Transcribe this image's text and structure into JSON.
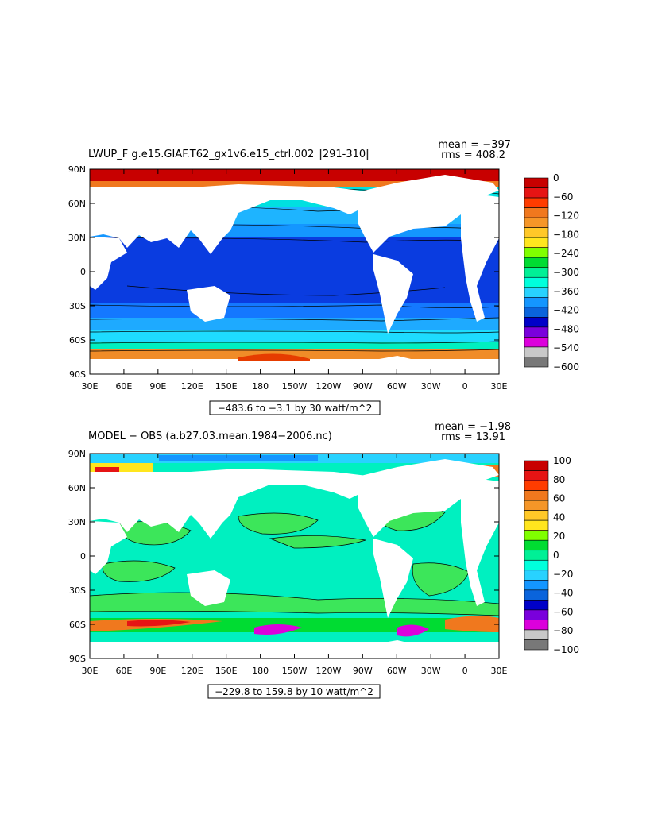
{
  "panels": [
    {
      "title": "LWUP_F g.e15.GIAF.T62_gx1v6.e15_ctrl.002 ‖291-310‖",
      "mean": "mean = −397",
      "rms": "rms = 408.2",
      "range_label": "−483.6 to −3.1 by 30 watt/m^2",
      "lat_labels": [
        "90N",
        "60N",
        "30N",
        "0",
        "30S",
        "60S",
        "90S"
      ],
      "lon_labels": [
        "30E",
        "60E",
        "90E",
        "120E",
        "150E",
        "180",
        "150W",
        "120W",
        "90W",
        "60W",
        "30W",
        "0",
        "30E"
      ],
      "colorbar": {
        "labels": [
          "0",
          "−60",
          "−120",
          "−180",
          "−240",
          "−300",
          "−360",
          "−420",
          "−480",
          "−540",
          "−600"
        ],
        "colors": [
          "#c80000",
          "#e61414",
          "#ff3c00",
          "#f0781e",
          "#f59628",
          "#ffc828",
          "#ffe61e",
          "#80ff00",
          "#00dc32",
          "#00f096",
          "#00ffdc",
          "#28d2ff",
          "#1496ff",
          "#0a64dc",
          "#0000c8",
          "#7a00dc",
          "#dc00dc",
          "#c8c8c8",
          "#787878"
        ]
      }
    },
    {
      "title": "MODEL − OBS (a.b27.03.mean.1984−2006.nc)",
      "mean": "mean = −1.98",
      "rms": "rms = 13.91",
      "range_label": "−229.8 to 159.8 by 10 watt/m^2",
      "lat_labels": [
        "90N",
        "60N",
        "30N",
        "0",
        "30S",
        "60S",
        "90S"
      ],
      "lon_labels": [
        "30E",
        "60E",
        "90E",
        "120E",
        "150E",
        "180",
        "150W",
        "120W",
        "90W",
        "60W",
        "30W",
        "0",
        "30E"
      ],
      "colorbar": {
        "labels": [
          "100",
          "80",
          "60",
          "40",
          "20",
          "0",
          "−20",
          "−40",
          "−60",
          "−80",
          "−100"
        ],
        "colors": [
          "#c80000",
          "#e61414",
          "#ff3c00",
          "#f0781e",
          "#f59628",
          "#ffc828",
          "#ffe61e",
          "#80ff00",
          "#00dc32",
          "#00f096",
          "#00ffdc",
          "#28d2ff",
          "#1496ff",
          "#0a64dc",
          "#0000c8",
          "#7a00dc",
          "#dc00dc",
          "#c8c8c8",
          "#787878"
        ]
      }
    }
  ]
}
